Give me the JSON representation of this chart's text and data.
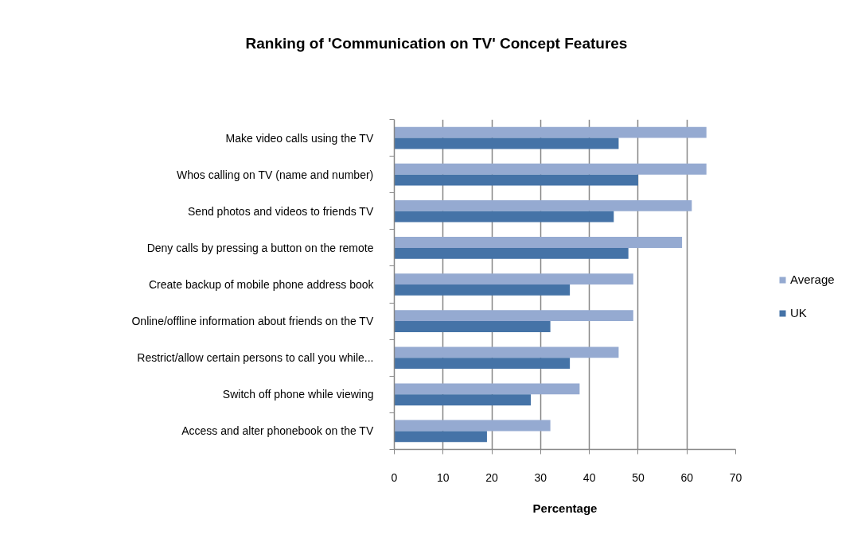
{
  "chart_data": {
    "type": "bar",
    "orientation": "horizontal",
    "title": "Ranking of 'Communication on TV' Concept Features",
    "xlabel": "Percentage",
    "categories": [
      "Make video calls using the TV",
      "Whos calling on TV (name and number)",
      "Send photos and videos to friends TV",
      "Deny calls by pressing a button on the remote",
      "Create backup of mobile phone address book",
      "Online/offline information about friends on the TV",
      "Restrict/allow certain persons to call you while...",
      "Switch off phone while viewing",
      "Access and alter phonebook on the TV"
    ],
    "series": [
      {
        "name": "Average",
        "color": "#95aad1",
        "values": [
          64,
          64,
          61,
          59,
          49,
          49,
          46,
          38,
          32
        ]
      },
      {
        "name": "UK",
        "color": "#4573a7",
        "values": [
          46,
          50,
          45,
          48,
          36,
          32,
          36,
          28,
          19
        ]
      }
    ],
    "xlim": [
      0,
      70
    ],
    "xticks": [
      0,
      10,
      20,
      30,
      40,
      50,
      60,
      70
    ],
    "grid": "x",
    "legend": "right"
  }
}
